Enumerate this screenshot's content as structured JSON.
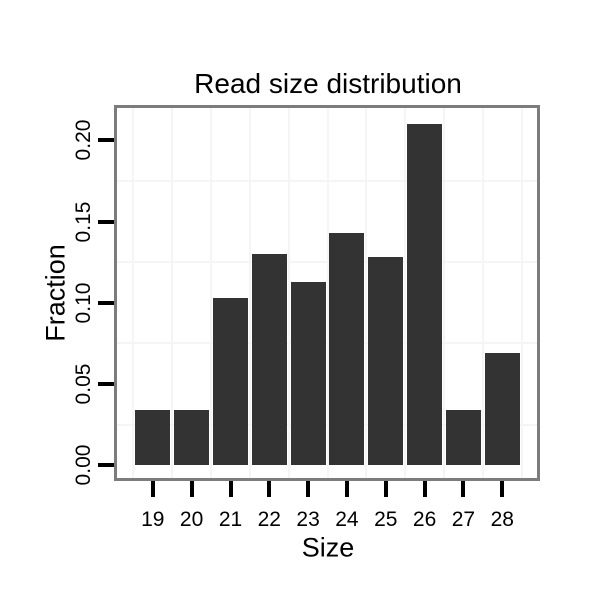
{
  "chart_data": {
    "type": "bar",
    "title": "Read size distribution",
    "xlabel": "Size",
    "ylabel": "Fraction",
    "categories": [
      "19",
      "20",
      "21",
      "22",
      "23",
      "24",
      "25",
      "26",
      "27",
      "28"
    ],
    "values": [
      0.034,
      0.034,
      0.103,
      0.13,
      0.113,
      0.143,
      0.128,
      0.21,
      0.034,
      0.069
    ],
    "y_tick_labels": [
      "0.00",
      "0.05",
      "0.10",
      "0.15",
      "0.20"
    ],
    "y_tick_values": [
      0.0,
      0.05,
      0.1,
      0.15,
      0.2
    ],
    "ylim": [
      -0.008,
      0.22
    ],
    "xlim": [
      18.05,
      28.95
    ],
    "legend": "none",
    "grid": "minor gridlines only (vertical at half-unit positions, horizontal at 0.025 offsets)",
    "y_tick_label_rotation_deg": 90
  },
  "colors": {
    "bar": "#333333",
    "panel_border": "#7c7c7c",
    "gridline": "#f5f5f5",
    "text": "#000000",
    "background": "#ffffff"
  }
}
